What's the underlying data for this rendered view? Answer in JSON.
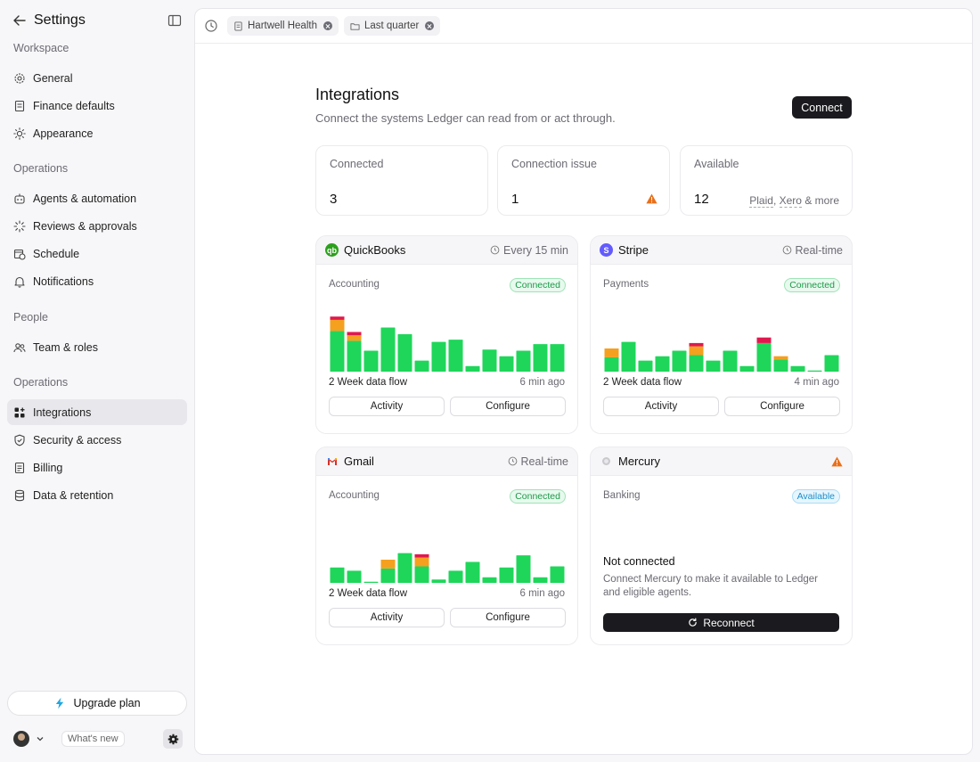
{
  "sidebar": {
    "title": "Settings",
    "sections": [
      {
        "label": "Workspace",
        "items": [
          {
            "label": "General",
            "icon": "gear-icon"
          },
          {
            "label": "Finance defaults",
            "icon": "document-icon"
          },
          {
            "label": "Appearance",
            "icon": "sun-icon"
          }
        ]
      },
      {
        "label": "Operations",
        "items": [
          {
            "label": "Agents & automation",
            "icon": "robot-icon"
          },
          {
            "label": "Reviews & approvals",
            "icon": "loader-icon"
          },
          {
            "label": "Schedule",
            "icon": "calendar-clock-icon"
          },
          {
            "label": "Notifications",
            "icon": "bell-icon"
          }
        ]
      },
      {
        "label": "People",
        "items": [
          {
            "label": "Team & roles",
            "icon": "users-icon"
          }
        ]
      },
      {
        "label": "Operations",
        "items": [
          {
            "label": "Integrations",
            "icon": "grid-plus-icon",
            "active": true
          },
          {
            "label": "Security & access",
            "icon": "shield-icon"
          },
          {
            "label": "Billing",
            "icon": "receipt-icon"
          },
          {
            "label": "Data & retention",
            "icon": "database-icon"
          }
        ]
      }
    ],
    "upgrade_label": "Upgrade plan",
    "whats_new_label": "What's new"
  },
  "topbar": {
    "chips": [
      {
        "label": "Hartwell Health",
        "icon": "document-icon"
      },
      {
        "label": "Last quarter",
        "icon": "folder-icon"
      }
    ]
  },
  "page": {
    "title": "Integrations",
    "subtitle": "Connect the systems Ledger can read from or act through.",
    "connect_label": "Connect"
  },
  "stats": [
    {
      "label": "Connected",
      "value": "3"
    },
    {
      "label": "Connection issue",
      "value": "1"
    },
    {
      "label": "Available",
      "value": "12",
      "more_a": "Plaid",
      "more_b": "Xero",
      "more_c": "& more"
    }
  ],
  "colors": {
    "ok": "#1fd65a",
    "warn": "#f5a01f",
    "error": "#e0184e"
  },
  "integrations": [
    {
      "name": "QuickBooks",
      "schedule": "Every 15 min",
      "category": "Accounting",
      "status": "Connected",
      "flow_label": "2 Week data flow",
      "updated": "6 min ago",
      "activity_label": "Activity",
      "configure_label": "Configure",
      "flow": [
        {
          "ok": 37,
          "warn": 10,
          "err": 3
        },
        {
          "ok": 28,
          "warn": 5,
          "err": 3
        },
        {
          "ok": 19,
          "warn": 0,
          "err": 0
        },
        {
          "ok": 40,
          "warn": 0,
          "err": 0
        },
        {
          "ok": 34,
          "warn": 0,
          "err": 0
        },
        {
          "ok": 10,
          "warn": 0,
          "err": 0
        },
        {
          "ok": 27,
          "warn": 0,
          "err": 0
        },
        {
          "ok": 29,
          "warn": 0,
          "err": 0
        },
        {
          "ok": 5,
          "warn": 0,
          "err": 0
        },
        {
          "ok": 20,
          "warn": 0,
          "err": 0
        },
        {
          "ok": 14,
          "warn": 0,
          "err": 0
        },
        {
          "ok": 19,
          "warn": 0,
          "err": 0
        },
        {
          "ok": 25,
          "warn": 0,
          "err": 0
        },
        {
          "ok": 25,
          "warn": 0,
          "err": 0
        }
      ]
    },
    {
      "name": "Stripe",
      "schedule": "Real-time",
      "category": "Payments",
      "status": "Connected",
      "flow_label": "2 Week data flow",
      "updated": "4 min ago",
      "activity_label": "Activity",
      "configure_label": "Configure",
      "flow": [
        {
          "ok": 13,
          "warn": 8,
          "err": 0
        },
        {
          "ok": 27,
          "warn": 0,
          "err": 0
        },
        {
          "ok": 10,
          "warn": 0,
          "err": 0
        },
        {
          "ok": 14,
          "warn": 0,
          "err": 0
        },
        {
          "ok": 19,
          "warn": 0,
          "err": 0
        },
        {
          "ok": 15,
          "warn": 8,
          "err": 3
        },
        {
          "ok": 10,
          "warn": 0,
          "err": 0
        },
        {
          "ok": 19,
          "warn": 0,
          "err": 0
        },
        {
          "ok": 5,
          "warn": 0,
          "err": 0
        },
        {
          "ok": 26,
          "warn": 0,
          "err": 5
        },
        {
          "ok": 11,
          "warn": 3,
          "err": 0
        },
        {
          "ok": 5,
          "warn": 0,
          "err": 0
        },
        {
          "ok": 1,
          "warn": 0,
          "err": 0
        },
        {
          "ok": 15,
          "warn": 0,
          "err": 0
        }
      ]
    },
    {
      "name": "Gmail",
      "schedule": "Real-time",
      "category": "Accounting",
      "status": "Connected",
      "flow_label": "2 Week data flow",
      "updated": "6 min ago",
      "activity_label": "Activity",
      "configure_label": "Configure",
      "flow": [
        {
          "ok": 14,
          "warn": 0,
          "err": 0
        },
        {
          "ok": 11,
          "warn": 0,
          "err": 0
        },
        {
          "ok": 1,
          "warn": 0,
          "err": 0
        },
        {
          "ok": 13,
          "warn": 8,
          "err": 0
        },
        {
          "ok": 27,
          "warn": 0,
          "err": 0
        },
        {
          "ok": 15,
          "warn": 8,
          "err": 3
        },
        {
          "ok": 3,
          "warn": 0,
          "err": 0
        },
        {
          "ok": 11,
          "warn": 0,
          "err": 0
        },
        {
          "ok": 19,
          "warn": 0,
          "err": 0
        },
        {
          "ok": 5,
          "warn": 0,
          "err": 0
        },
        {
          "ok": 14,
          "warn": 0,
          "err": 0
        },
        {
          "ok": 25,
          "warn": 0,
          "err": 0
        },
        {
          "ok": 5,
          "warn": 0,
          "err": 0
        },
        {
          "ok": 15,
          "warn": 0,
          "err": 0
        }
      ]
    },
    {
      "name": "Mercury",
      "category": "Banking",
      "status": "Available",
      "not_connected_title": "Not connected",
      "not_connected_desc": "Connect Mercury to make it available to Ledger and eligible agents.",
      "reconnect_label": "Reconnect"
    }
  ]
}
